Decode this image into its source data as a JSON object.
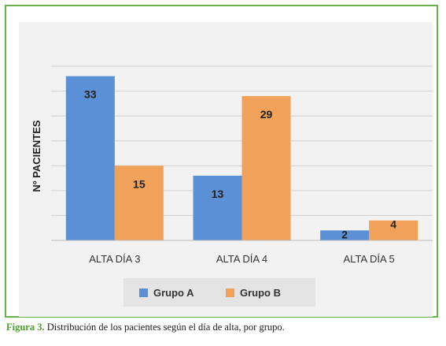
{
  "chart_data": {
    "type": "bar",
    "categories": [
      "ALTA DÍA 3",
      "ALTA DÍA 4",
      "ALTA DÍA 5"
    ],
    "series": [
      {
        "name": "Grupo A",
        "values": [
          33,
          13,
          2
        ],
        "color": "#5b8fd6"
      },
      {
        "name": "Grupo B",
        "values": [
          15,
          29,
          4
        ],
        "color": "#f0a25b"
      }
    ],
    "title": "",
    "xlabel": "",
    "ylabel": "Nº PACIENTES",
    "ylim": [
      0,
      35
    ],
    "grid": true,
    "legend": "bottom",
    "data_labels": true
  },
  "caption": {
    "label": "Figura 3.",
    "text": " Distribución de los pacientes según el día de alta, por grupo."
  }
}
